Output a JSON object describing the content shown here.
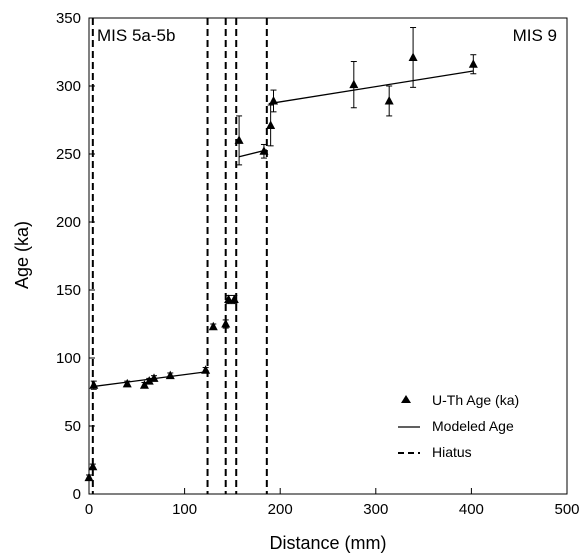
{
  "chart_data": {
    "type": "scatter",
    "xlabel": "Distance (mm)",
    "ylabel": "Age (ka)",
    "xlim": [
      0,
      500
    ],
    "ylim": [
      0,
      350
    ],
    "xticks": [
      0,
      100,
      200,
      300,
      400,
      500
    ],
    "yticks": [
      0,
      50,
      100,
      150,
      200,
      250,
      300,
      350
    ],
    "grid": false,
    "legend_position": "bottom-right",
    "annotations": [
      {
        "text": "MIS 5a-5b",
        "position": "top-left"
      },
      {
        "text": "MIS 9",
        "position": "top-right"
      }
    ],
    "series": [
      {
        "name": "U-Th Age (ka)",
        "marker": "triangle",
        "points": [
          {
            "x": 0,
            "y": 12,
            "err": 2
          },
          {
            "x": 4,
            "y": 20,
            "err": 2
          },
          {
            "x": 5,
            "y": 80,
            "err": 3
          },
          {
            "x": 40,
            "y": 81,
            "err": 2
          },
          {
            "x": 58,
            "y": 80,
            "err": 2
          },
          {
            "x": 63,
            "y": 83,
            "err": 2
          },
          {
            "x": 68,
            "y": 85,
            "err": 2
          },
          {
            "x": 85,
            "y": 87,
            "err": 2
          },
          {
            "x": 122,
            "y": 91,
            "err": 2
          },
          {
            "x": 130,
            "y": 123,
            "err": 2
          },
          {
            "x": 143,
            "y": 125,
            "err": 3
          },
          {
            "x": 146,
            "y": 143,
            "err": 3
          },
          {
            "x": 152,
            "y": 143,
            "err": 3
          },
          {
            "x": 157,
            "y": 260,
            "err": 18
          },
          {
            "x": 183,
            "y": 252,
            "err": 5
          },
          {
            "x": 190,
            "y": 271,
            "err": 15
          },
          {
            "x": 193,
            "y": 289,
            "err": 8
          },
          {
            "x": 277,
            "y": 301,
            "err": 17
          },
          {
            "x": 314,
            "y": 289,
            "err": 11
          },
          {
            "x": 339,
            "y": 321,
            "err": 22
          },
          {
            "x": 402,
            "y": 316,
            "err": 7
          }
        ]
      },
      {
        "name": "Modeled Age",
        "style": "solid",
        "segments": [
          [
            [
              4,
              79
            ],
            [
              124,
              90
            ]
          ],
          [
            [
              157,
              248
            ],
            [
              186,
              253
            ]
          ],
          [
            [
              188,
              287
            ],
            [
              402,
              311
            ]
          ]
        ]
      },
      {
        "name": "Hiatus",
        "style": "dashed",
        "x_positions": [
          4,
          124,
          143,
          154,
          186
        ]
      }
    ]
  }
}
